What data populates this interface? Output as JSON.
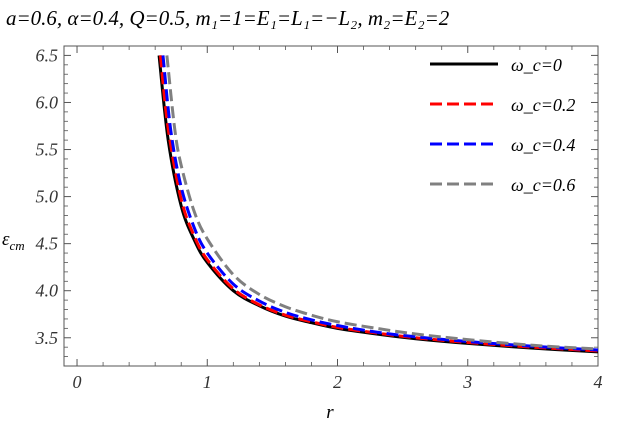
{
  "chart_data": {
    "type": "line",
    "title": "a=0.6, α=0.4, Q=0.5, m₁=1=E₁=L₁=−L₂, m₂=E₂=2",
    "xlabel": "r",
    "ylabel": "ε_cm",
    "xlim": [
      -0.1,
      4.0
    ],
    "ylim": [
      3.2,
      6.6
    ],
    "xticks": [
      0,
      1,
      2,
      3,
      4
    ],
    "xtick_labels": [
      "0",
      "1",
      "2",
      "3",
      "4"
    ],
    "yticks": [
      3.5,
      4.0,
      4.5,
      5.0,
      5.5,
      6.0,
      6.5
    ],
    "ytick_labels": [
      "3.5",
      "4.0",
      "4.5",
      "5.0",
      "5.5",
      "6.0",
      "6.5"
    ],
    "grid": false,
    "legend_position": "top-right",
    "series": [
      {
        "name": "ω_c=0",
        "color": "#000000",
        "dash": "solid",
        "x": [
          0.63,
          0.7,
          0.8,
          0.9,
          1.0,
          1.2,
          1.4,
          1.6,
          1.8,
          2.0,
          2.3,
          2.6,
          3.0,
          3.5,
          4.0
        ],
        "y": [
          6.5,
          5.6,
          4.9,
          4.54,
          4.3,
          4.0,
          3.84,
          3.73,
          3.66,
          3.6,
          3.54,
          3.49,
          3.44,
          3.39,
          3.35
        ]
      },
      {
        "name": "ω_c=0.2",
        "color": "#ff0000",
        "dash": "dashed",
        "x": [
          0.64,
          0.7,
          0.8,
          0.9,
          1.0,
          1.2,
          1.4,
          1.6,
          1.8,
          2.0,
          2.3,
          2.6,
          3.0,
          3.5,
          4.0
        ],
        "y": [
          6.5,
          5.72,
          4.97,
          4.58,
          4.33,
          4.02,
          3.85,
          3.74,
          3.67,
          3.61,
          3.55,
          3.5,
          3.45,
          3.4,
          3.36
        ]
      },
      {
        "name": "ω_c=0.4",
        "color": "#0000ff",
        "dash": "dashed",
        "x": [
          0.66,
          0.72,
          0.8,
          0.9,
          1.0,
          1.2,
          1.4,
          1.6,
          1.8,
          2.0,
          2.3,
          2.6,
          3.0,
          3.5,
          4.0
        ],
        "y": [
          6.5,
          5.7,
          5.1,
          4.67,
          4.4,
          4.07,
          3.89,
          3.77,
          3.69,
          3.63,
          3.56,
          3.51,
          3.46,
          3.41,
          3.37
        ]
      },
      {
        "name": "ω_c=0.6",
        "color": "#808080",
        "dash": "dashed",
        "x": [
          0.69,
          0.75,
          0.8,
          0.9,
          1.0,
          1.2,
          1.4,
          1.6,
          1.8,
          2.0,
          2.3,
          2.6,
          3.0,
          3.5,
          4.0
        ],
        "y": [
          6.5,
          5.72,
          5.33,
          4.84,
          4.55,
          4.17,
          3.96,
          3.83,
          3.74,
          3.67,
          3.6,
          3.54,
          3.48,
          3.42,
          3.38
        ]
      }
    ]
  }
}
